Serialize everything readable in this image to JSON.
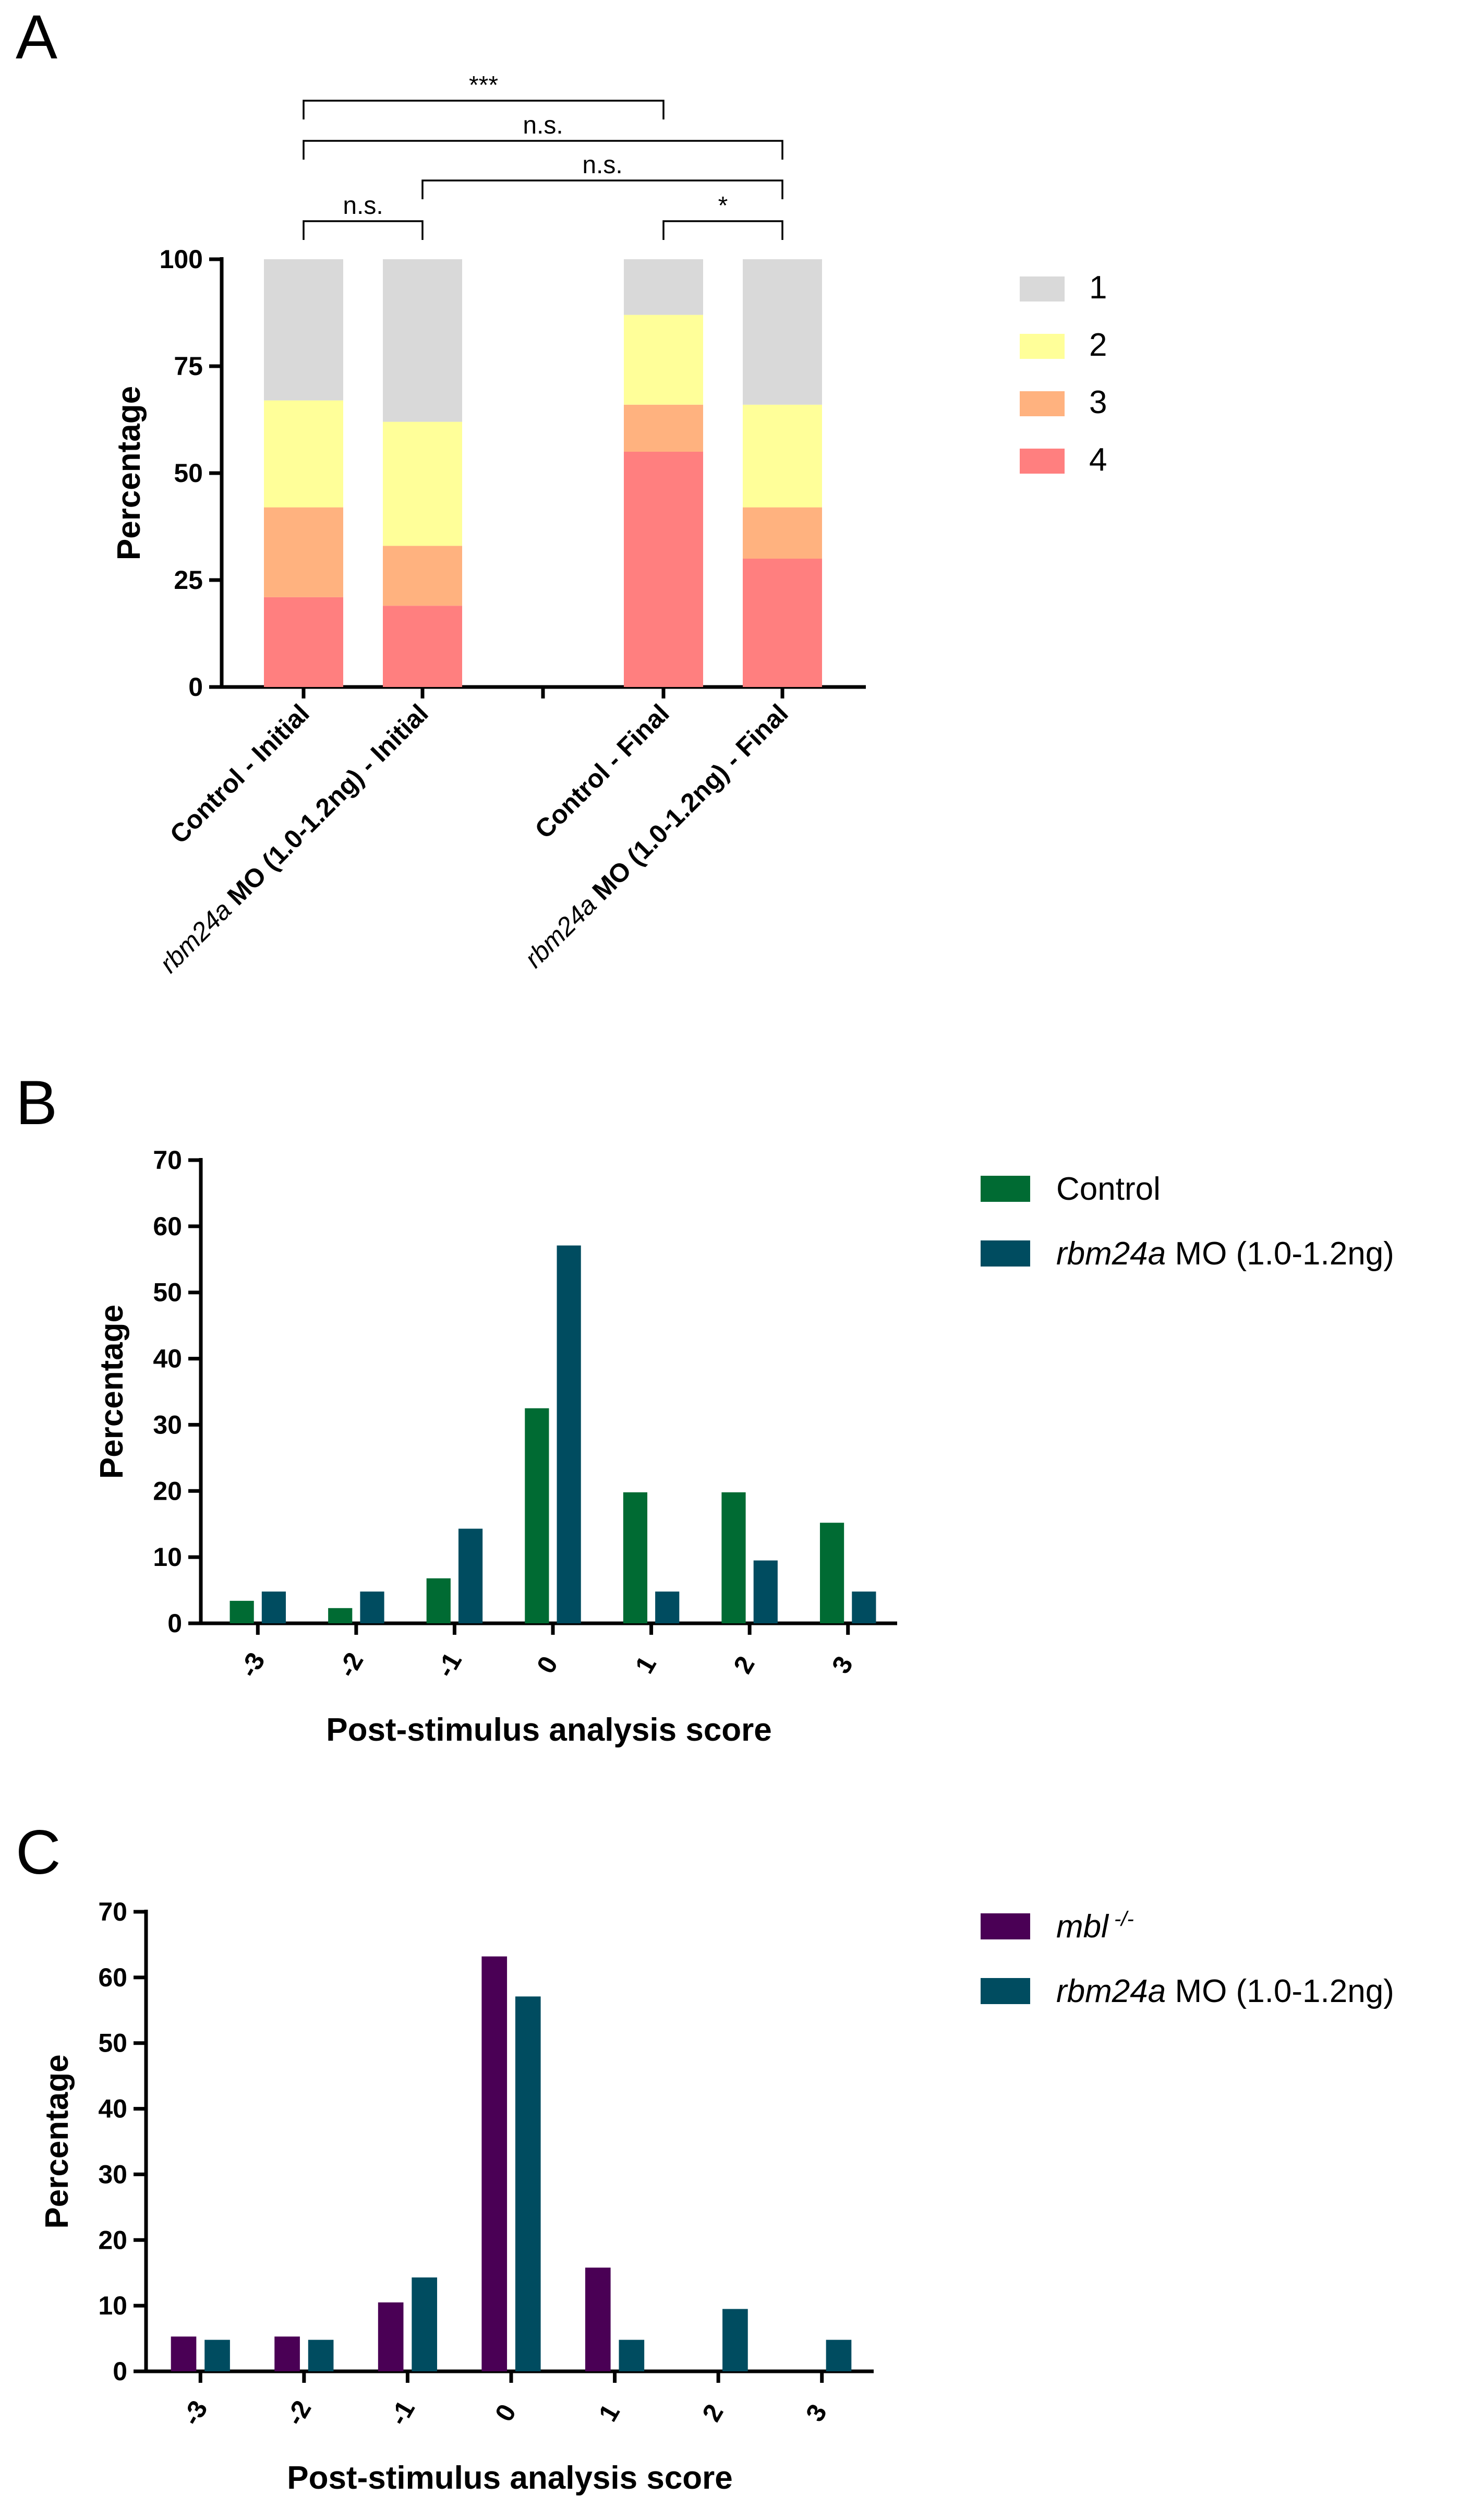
{
  "panels": {
    "A": {
      "letter": "A",
      "chart_data": {
        "type": "bar",
        "stacked": true,
        "ylabel": "Percentage",
        "ylim": [
          0,
          100
        ],
        "yticks": [
          0,
          25,
          50,
          75,
          100
        ],
        "categories": [
          {
            "prefix": "",
            "italic": "",
            "suffix": "Control - Initial"
          },
          {
            "prefix": "",
            "italic": "rbm24a",
            "suffix": " MO (1.0-1.2ng) - Initial"
          },
          {
            "prefix": "",
            "italic": "",
            "suffix": "Control - Final"
          },
          {
            "prefix": "",
            "italic": "rbm24a",
            "suffix": " MO (1.0-1.2ng) - Final"
          }
        ],
        "series": [
          {
            "name": "4",
            "color": "#ff7f7f",
            "values": [
              21,
              19,
              55,
              30
            ]
          },
          {
            "name": "3",
            "color": "#ffb27f",
            "values": [
              21,
              14,
              11,
              12
            ]
          },
          {
            "name": "2",
            "color": "#ffff99",
            "values": [
              25,
              29,
              21,
              24
            ]
          },
          {
            "name": "1",
            "color": "#d9d9d9",
            "values": [
              33,
              38,
              13,
              34
            ]
          }
        ],
        "significance": [
          {
            "from": 0,
            "to": 2,
            "label": "***"
          },
          {
            "from": 0,
            "to": 3,
            "label": "n.s."
          },
          {
            "from": 1,
            "to": 3,
            "label": "n.s."
          },
          {
            "from": 0,
            "to": 1,
            "label": "n.s."
          },
          {
            "from": 2,
            "to": 3,
            "label": "*"
          }
        ]
      }
    },
    "B": {
      "letter": "B",
      "chart_data": {
        "type": "bar",
        "xlabel": "Post-stimulus analysis score",
        "ylabel": "Percentage",
        "ylim": [
          0,
          70
        ],
        "yticks": [
          0,
          10,
          20,
          30,
          40,
          50,
          60,
          70
        ],
        "categories": [
          "-3",
          "-2",
          "-1",
          "0",
          "1",
          "2",
          "3"
        ],
        "series": [
          {
            "name": "Control",
            "italic": "",
            "suffix": "Control",
            "color": "#006b33",
            "values": [
              3.4,
              2.3,
              6.8,
              32.5,
              19.8,
              19.8,
              15.2
            ]
          },
          {
            "name": "rbm24a MO (1.0-1.2ng)",
            "italic": "rbm24a",
            "suffix": " MO (1.0-1.2ng)",
            "color": "#004c60",
            "values": [
              4.8,
              4.8,
              14.3,
              57.1,
              4.8,
              9.5,
              4.8
            ]
          }
        ]
      }
    },
    "C": {
      "letter": "C",
      "chart_data": {
        "type": "bar",
        "xlabel": "Post-stimulus analysis score",
        "ylabel": "Percentage",
        "ylim": [
          0,
          70
        ],
        "yticks": [
          0,
          10,
          20,
          30,
          40,
          50,
          60,
          70
        ],
        "categories": [
          "-3",
          "-2",
          "-1",
          "0",
          "1",
          "2",
          "3"
        ],
        "series": [
          {
            "name": "mbl -/-",
            "italic": "mbl",
            "sup": "-/-",
            "suffix": "",
            "color": "#4a0055",
            "values": [
              5.3,
              5.3,
              10.5,
              63.2,
              15.8,
              0,
              0
            ]
          },
          {
            "name": "rbm24a MO (1.0-1.2ng)",
            "italic": "rbm24a",
            "suffix": " MO (1.0-1.2ng)",
            "color": "#004c60",
            "values": [
              4.8,
              4.8,
              14.3,
              57.1,
              4.8,
              9.5,
              4.8
            ]
          }
        ]
      }
    }
  }
}
